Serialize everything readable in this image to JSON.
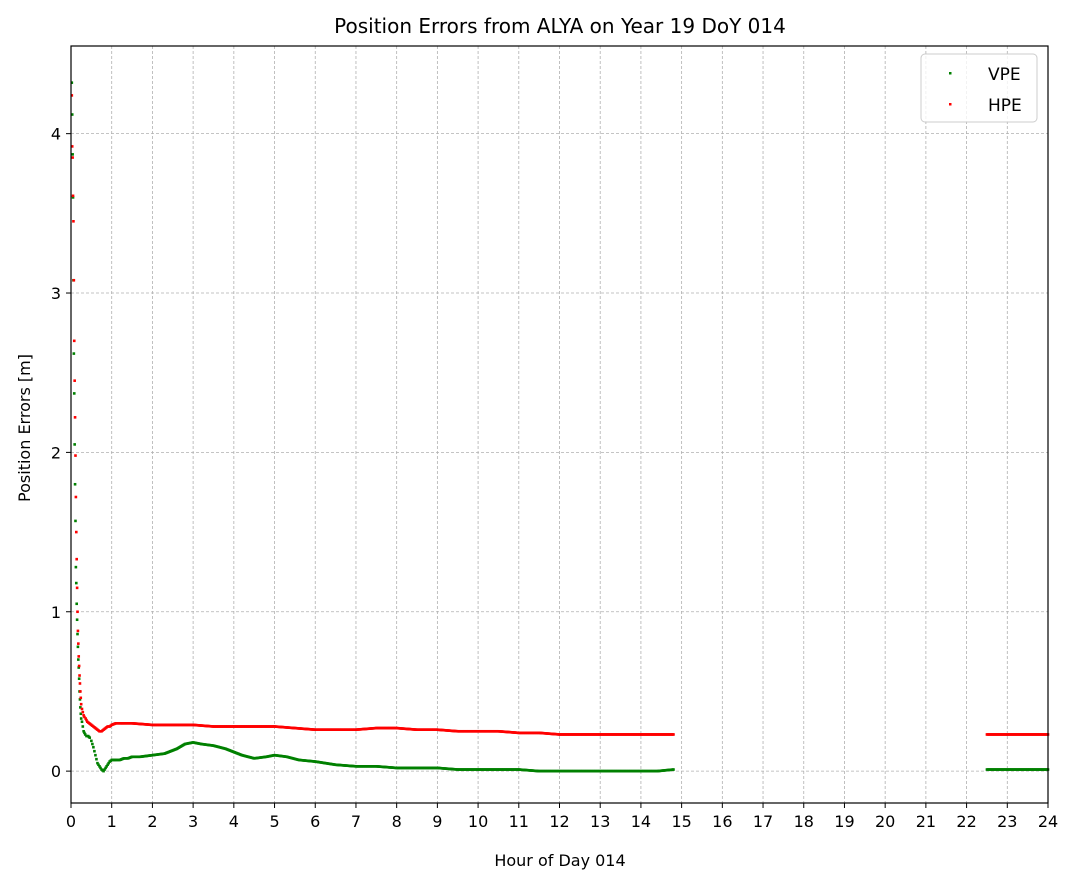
{
  "chart_data": {
    "type": "scatter",
    "title": "Position Errors from ALYA on Year 19 DoY 014",
    "xlabel": "Hour of Day 014",
    "ylabel": "Position Errors [m]",
    "xlim": [
      0,
      24
    ],
    "ylim": [
      -0.2,
      4.55
    ],
    "xticks": [
      "0",
      "1",
      "2",
      "3",
      "4",
      "5",
      "6",
      "7",
      "8",
      "9",
      "10",
      "11",
      "12",
      "13",
      "14",
      "15",
      "16",
      "17",
      "18",
      "19",
      "20",
      "21",
      "22",
      "23",
      "24"
    ],
    "yticks": [
      "0",
      "1",
      "2",
      "3",
      "4"
    ],
    "grid": true,
    "legend_position": "top-right",
    "series": [
      {
        "name": "VPE",
        "color": "#008000",
        "x": [
          0.02,
          0.03,
          0.04,
          0.05,
          0.06,
          0.07,
          0.08,
          0.09,
          0.1,
          0.11,
          0.12,
          0.13,
          0.14,
          0.15,
          0.16,
          0.17,
          0.18,
          0.19,
          0.2,
          0.21,
          0.22,
          0.23,
          0.24,
          0.25,
          0.27,
          0.29,
          0.31,
          0.33,
          0.35,
          0.38,
          0.42,
          0.46,
          0.5,
          0.55,
          0.6,
          0.65,
          0.7,
          0.75,
          0.8,
          0.85,
          0.9,
          0.95,
          1.0,
          1.1,
          1.2,
          1.3,
          1.4,
          1.5,
          1.7,
          2.0,
          2.3,
          2.6,
          2.8,
          3.0,
          3.2,
          3.5,
          3.8,
          4.0,
          4.2,
          4.5,
          4.8,
          5.0,
          5.3,
          5.6,
          6.0,
          6.5,
          7.0,
          7.5,
          8.0,
          8.5,
          9.0,
          9.5,
          10.0,
          10.5,
          11.0,
          11.5,
          12.0,
          12.5,
          13.0,
          13.5,
          14.0,
          14.4,
          14.8,
          22.5,
          23.0,
          23.5,
          24.0
        ],
        "y": [
          4.32,
          4.12,
          3.87,
          3.6,
          3.08,
          2.62,
          2.37,
          2.05,
          1.8,
          1.57,
          1.28,
          1.18,
          1.05,
          0.95,
          0.86,
          0.78,
          0.7,
          0.65,
          0.58,
          0.5,
          0.45,
          0.4,
          0.36,
          0.33,
          0.31,
          0.28,
          0.25,
          0.24,
          0.23,
          0.22,
          0.22,
          0.21,
          0.19,
          0.15,
          0.1,
          0.05,
          0.03,
          0.01,
          0.0,
          0.02,
          0.04,
          0.06,
          0.07,
          0.07,
          0.07,
          0.08,
          0.08,
          0.09,
          0.09,
          0.1,
          0.11,
          0.14,
          0.17,
          0.18,
          0.17,
          0.16,
          0.14,
          0.12,
          0.1,
          0.08,
          0.09,
          0.1,
          0.09,
          0.07,
          0.06,
          0.04,
          0.03,
          0.03,
          0.02,
          0.02,
          0.02,
          0.01,
          0.01,
          0.01,
          0.01,
          0.0,
          0.0,
          0.0,
          0.0,
          0.0,
          0.0,
          0.0,
          0.01,
          0.01,
          0.01,
          0.01,
          0.01
        ]
      },
      {
        "name": "HPE",
        "color": "#ff0000",
        "x": [
          0.02,
          0.03,
          0.04,
          0.05,
          0.06,
          0.07,
          0.08,
          0.09,
          0.1,
          0.11,
          0.12,
          0.13,
          0.14,
          0.15,
          0.16,
          0.17,
          0.18,
          0.19,
          0.2,
          0.21,
          0.22,
          0.23,
          0.24,
          0.25,
          0.27,
          0.29,
          0.31,
          0.33,
          0.36,
          0.4,
          0.45,
          0.5,
          0.55,
          0.6,
          0.65,
          0.7,
          0.75,
          0.8,
          0.85,
          0.9,
          0.95,
          1.0,
          1.1,
          1.2,
          1.3,
          1.5,
          2.0,
          2.5,
          3.0,
          3.5,
          4.0,
          4.5,
          5.0,
          5.5,
          6.0,
          6.5,
          7.0,
          7.5,
          8.0,
          8.5,
          9.0,
          9.5,
          10.0,
          10.5,
          11.0,
          11.5,
          12.0,
          12.5,
          13.0,
          13.5,
          14.0,
          14.4,
          14.8,
          22.5,
          23.0,
          23.5,
          24.0
        ],
        "y": [
          4.24,
          3.92,
          3.85,
          3.61,
          3.45,
          3.08,
          2.7,
          2.45,
          2.22,
          1.98,
          1.72,
          1.5,
          1.33,
          1.15,
          1.0,
          0.88,
          0.8,
          0.72,
          0.66,
          0.6,
          0.55,
          0.5,
          0.46,
          0.42,
          0.39,
          0.37,
          0.35,
          0.34,
          0.33,
          0.31,
          0.3,
          0.29,
          0.28,
          0.27,
          0.26,
          0.25,
          0.25,
          0.26,
          0.27,
          0.28,
          0.28,
          0.29,
          0.3,
          0.3,
          0.3,
          0.3,
          0.29,
          0.29,
          0.29,
          0.28,
          0.28,
          0.28,
          0.28,
          0.27,
          0.26,
          0.26,
          0.26,
          0.27,
          0.27,
          0.26,
          0.26,
          0.25,
          0.25,
          0.25,
          0.24,
          0.24,
          0.23,
          0.23,
          0.23,
          0.23,
          0.23,
          0.23,
          0.23,
          0.23,
          0.23,
          0.23,
          0.23
        ]
      }
    ]
  }
}
